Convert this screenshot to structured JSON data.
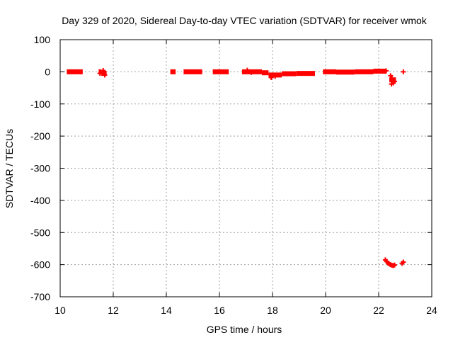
{
  "chart_data": {
    "type": "scatter",
    "title": "Day 329 of 2020, Sidereal Day-to-day VTEC variation (SDTVAR) for receiver wmok",
    "xlabel": "GPS time / hours",
    "ylabel": "SDTVAR / TECUs",
    "xlim": [
      10,
      24
    ],
    "ylim": [
      -700,
      100
    ],
    "xticks": [
      "10",
      "12",
      "14",
      "16",
      "18",
      "20",
      "22",
      "24"
    ],
    "yticks": [
      "100",
      "0",
      "-100",
      "-200",
      "-300",
      "-400",
      "-500",
      "-600",
      "-700"
    ],
    "grid": true,
    "marker": "plus",
    "color": "#ff0000",
    "series": [
      {
        "name": "SDTVAR",
        "segments": [
          {
            "x0": 10.25,
            "x1": 10.85,
            "y": 0
          },
          {
            "x0": 11.45,
            "x1": 11.55,
            "y": 0
          },
          {
            "x0": 11.55,
            "x1": 11.75,
            "y": -5
          },
          {
            "x0": 14.15,
            "x1": 14.35,
            "y": 0
          },
          {
            "x0": 14.65,
            "x1": 15.35,
            "y": 0
          },
          {
            "x0": 15.75,
            "x1": 16.35,
            "y": 0
          },
          {
            "x0": 16.85,
            "x1": 17.6,
            "y": 0
          },
          {
            "x0": 17.6,
            "x1": 17.85,
            "y": -3
          },
          {
            "x0": 17.85,
            "x1": 18.35,
            "y": -10
          },
          {
            "x0": 18.35,
            "x1": 18.9,
            "y": -6
          },
          {
            "x0": 18.9,
            "x1": 19.6,
            "y": -5
          },
          {
            "x0": 19.9,
            "x1": 20.4,
            "y": 0
          },
          {
            "x0": 20.4,
            "x1": 21.1,
            "y": -1
          },
          {
            "x0": 21.1,
            "x1": 21.8,
            "y": 0
          },
          {
            "x0": 21.8,
            "x1": 22.3,
            "y": 2
          },
          {
            "x0": 22.4,
            "x1": 22.65,
            "y": -25
          }
        ],
        "points": [
          {
            "x": 11.62,
            "y": 4
          },
          {
            "x": 11.68,
            "y": -10
          },
          {
            "x": 11.5,
            "y": -5
          },
          {
            "x": 17.05,
            "y": 5
          },
          {
            "x": 17.2,
            "y": -2
          },
          {
            "x": 17.95,
            "y": -18
          },
          {
            "x": 18.1,
            "y": -14
          },
          {
            "x": 22.28,
            "y": 3
          },
          {
            "x": 22.45,
            "y": -12
          },
          {
            "x": 22.5,
            "y": -20
          },
          {
            "x": 22.55,
            "y": -35
          },
          {
            "x": 22.6,
            "y": -30
          },
          {
            "x": 22.48,
            "y": -38
          },
          {
            "x": 22.93,
            "y": 0
          },
          {
            "x": 22.25,
            "y": -585
          },
          {
            "x": 22.3,
            "y": -590
          },
          {
            "x": 22.35,
            "y": -595
          },
          {
            "x": 22.4,
            "y": -598
          },
          {
            "x": 22.45,
            "y": -600
          },
          {
            "x": 22.5,
            "y": -602
          },
          {
            "x": 22.55,
            "y": -603
          },
          {
            "x": 22.6,
            "y": -601
          },
          {
            "x": 22.88,
            "y": -596
          },
          {
            "x": 22.93,
            "y": -592
          }
        ]
      }
    ]
  }
}
